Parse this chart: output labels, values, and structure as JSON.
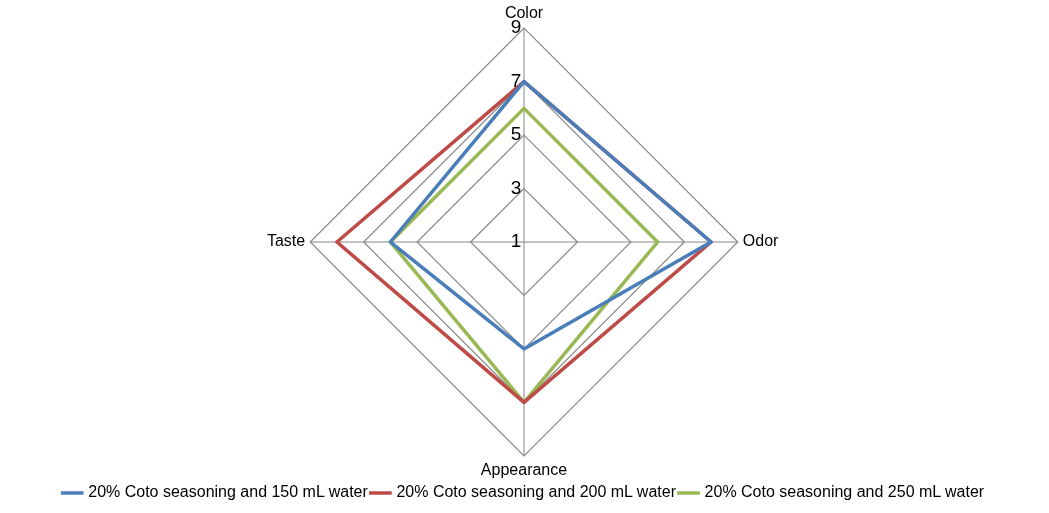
{
  "chart_data": {
    "type": "radar",
    "categories": [
      "Color",
      "Odor",
      "Appearance",
      "Taste"
    ],
    "series": [
      {
        "name": "20% Coto seasoning and 150 mL water",
        "color": "#4a7ebb",
        "values": [
          7,
          8,
          5,
          6
        ]
      },
      {
        "name": "20% Coto seasoning and 200 mL water",
        "color": "#be4b48",
        "values": [
          7,
          8,
          7,
          8
        ]
      },
      {
        "name": "20% Coto seasoning and 250 mL water",
        "color": "#98b954",
        "values": [
          6,
          6,
          7,
          6
        ]
      }
    ],
    "ylim": [
      1,
      9
    ],
    "yticks": [
      1,
      3,
      5,
      7,
      9
    ],
    "grid": true,
    "legend": "bottom",
    "marker": "none",
    "line_style": "solid"
  }
}
